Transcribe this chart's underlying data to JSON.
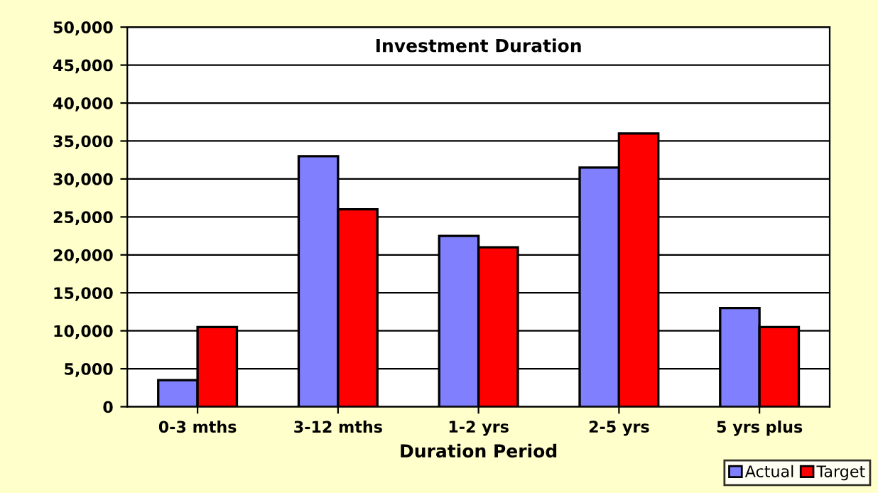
{
  "chart_data": {
    "type": "bar",
    "title": "Investment Duration",
    "xlabel": "Duration Period",
    "categories": [
      "0-3 mths",
      "3-12 mths",
      "1-2 yrs",
      "2-5 yrs",
      "5 yrs plus"
    ],
    "series": [
      {
        "name": "Actual",
        "color": "#8080ff",
        "values": [
          3500,
          33000,
          22500,
          31500,
          13000
        ]
      },
      {
        "name": "Target",
        "color": "#ff0000",
        "values": [
          10500,
          26000,
          21000,
          36000,
          10500
        ]
      }
    ],
    "ylim": [
      0,
      50000
    ],
    "yticks": [
      {
        "value": 0,
        "label": "0"
      },
      {
        "value": 5000,
        "label": "5,000"
      },
      {
        "value": 10000,
        "label": "10,000"
      },
      {
        "value": 15000,
        "label": "15,000"
      },
      {
        "value": 20000,
        "label": "20,000"
      },
      {
        "value": 25000,
        "label": "25,000"
      },
      {
        "value": 30000,
        "label": "30,000"
      },
      {
        "value": 35000,
        "label": "35,000"
      },
      {
        "value": 40000,
        "label": "40,000"
      },
      {
        "value": 45000,
        "label": "45,000"
      },
      {
        "value": 50000,
        "label": "50,000"
      }
    ],
    "grid": "y",
    "legend": "bottom right"
  }
}
